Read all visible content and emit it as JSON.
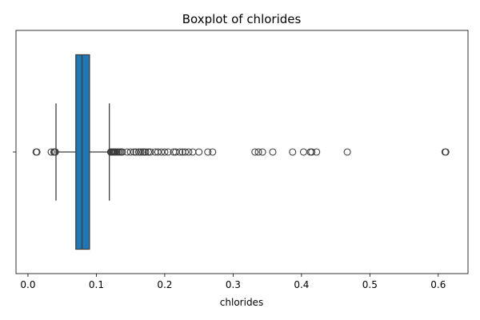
{
  "chart_data": {
    "type": "boxplot",
    "title": "Boxplot of chlorides",
    "xlabel": "chlorides",
    "ylabel": "",
    "xlim": [
      -0.0175,
      0.6435
    ],
    "xticks": [
      0.0,
      0.1,
      0.2,
      0.3,
      0.4,
      0.5,
      0.6
    ],
    "xtick_labels": [
      "0.0",
      "0.1",
      "0.2",
      "0.3",
      "0.4",
      "0.5",
      "0.6"
    ],
    "grid": false,
    "box": {
      "whisker_low": 0.041,
      "q1": 0.07,
      "median": 0.079,
      "q3": 0.09,
      "whisker_high": 0.119
    },
    "box_color": "#1f77b4",
    "outliers": [
      0.012,
      0.013,
      0.034,
      0.038,
      0.039,
      0.04,
      0.121,
      0.122,
      0.123,
      0.124,
      0.125,
      0.126,
      0.127,
      0.128,
      0.13,
      0.132,
      0.134,
      0.136,
      0.138,
      0.145,
      0.15,
      0.155,
      0.158,
      0.162,
      0.165,
      0.168,
      0.17,
      0.172,
      0.176,
      0.179,
      0.186,
      0.19,
      0.195,
      0.2,
      0.205,
      0.213,
      0.216,
      0.222,
      0.226,
      0.23,
      0.235,
      0.241,
      0.25,
      0.263,
      0.27,
      0.332,
      0.337,
      0.343,
      0.358,
      0.387,
      0.403,
      0.413,
      0.415,
      0.422,
      0.467,
      0.61,
      0.611
    ]
  }
}
